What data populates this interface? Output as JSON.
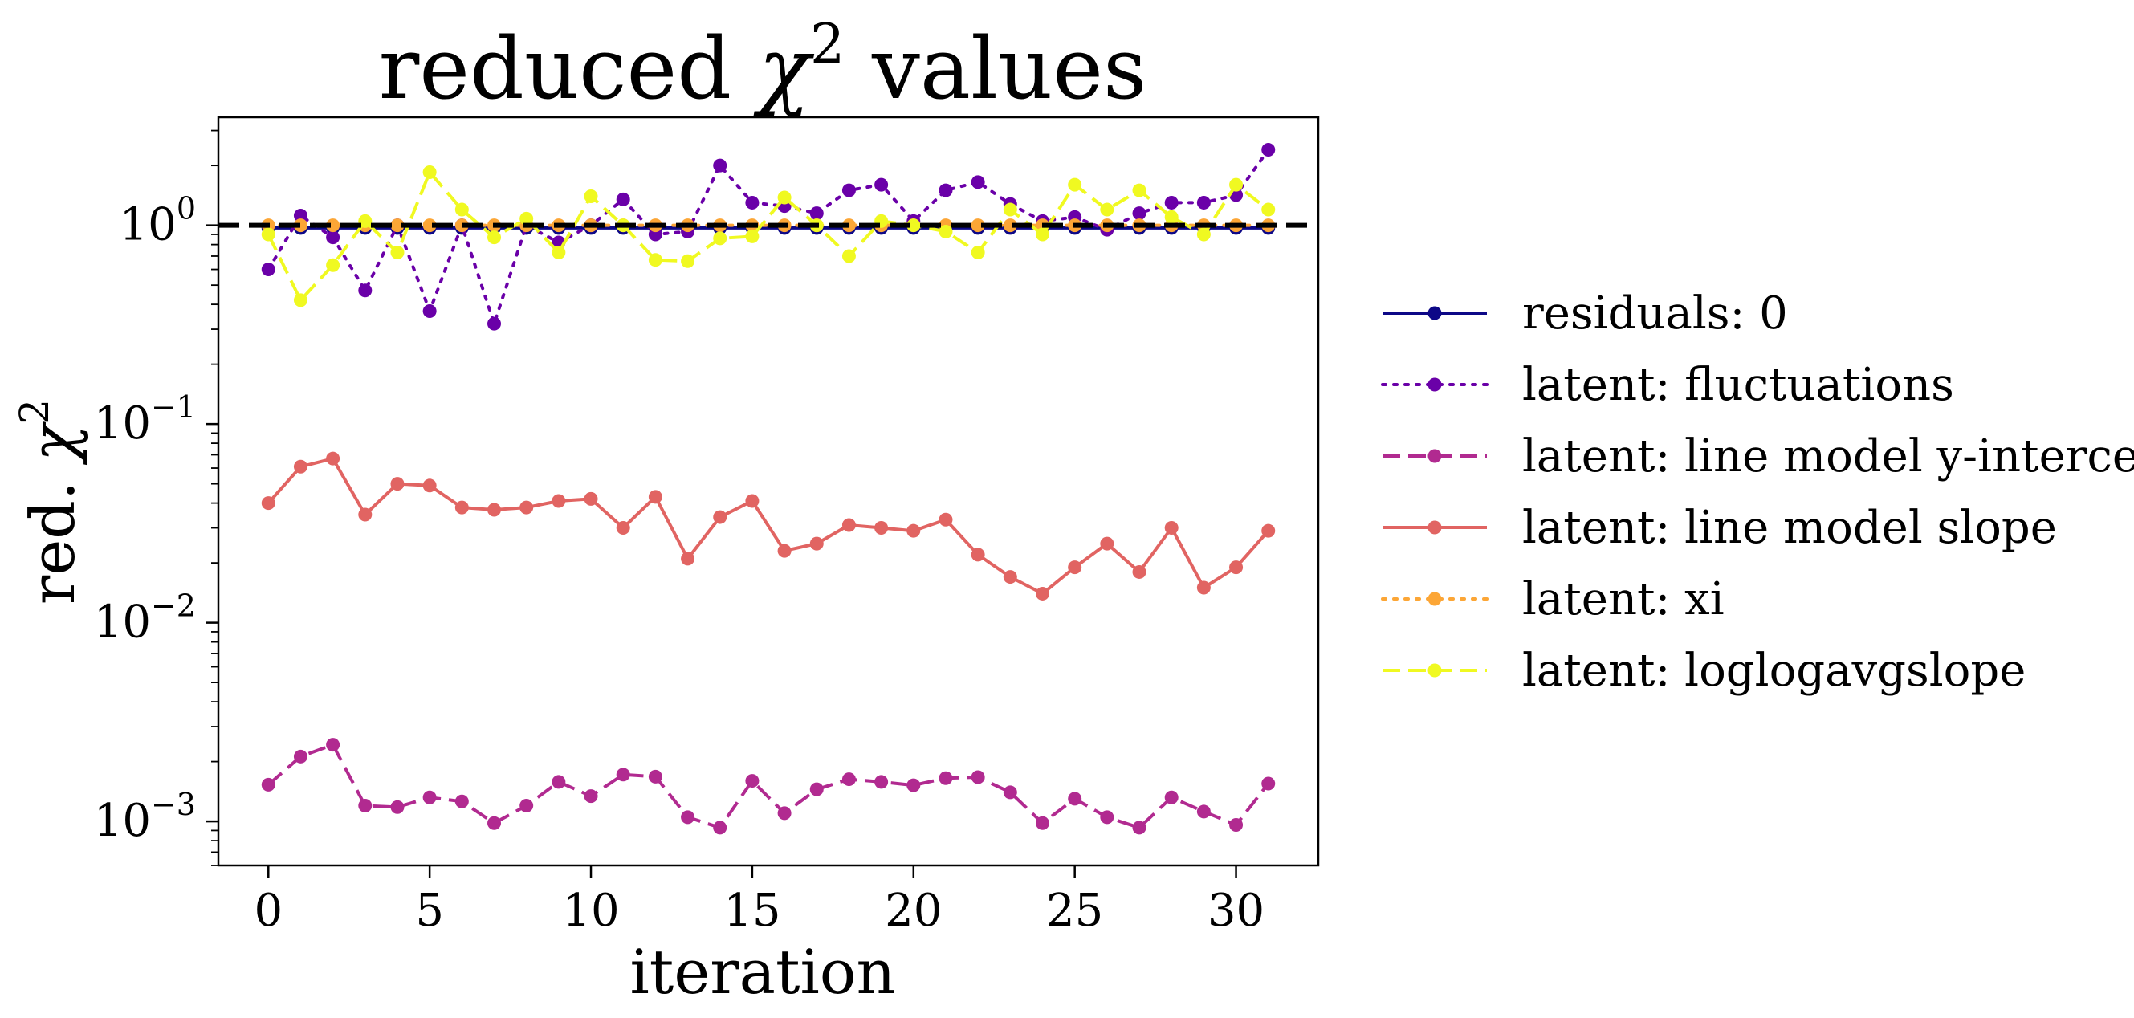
{
  "chart_data": {
    "type": "line",
    "title": "reduced χ² values",
    "title_main": "reduced ",
    "title_symbol": "χ",
    "title_sup": "2",
    "title_tail": " values",
    "xlabel": "iteration",
    "ylabel_main": "red. ",
    "ylabel_symbol": "χ",
    "ylabel_sup": "2",
    "ylabel": "red. χ²",
    "yscale": "log",
    "xlim": [
      -1.55,
      32.55
    ],
    "ylim": [
      0.0006,
      3.5
    ],
    "grid": false,
    "legend_position": "outside right",
    "x_ticks": [
      0,
      5,
      10,
      15,
      20,
      25,
      30
    ],
    "x_tick_labels": [
      "0",
      "5",
      "10",
      "15",
      "20",
      "25",
      "30"
    ],
    "y_ticks": [
      {
        "value": 1,
        "base": "10",
        "exp": "0"
      },
      {
        "value": 0.1,
        "base": "10",
        "exp": "−1"
      },
      {
        "value": 0.01,
        "base": "10",
        "exp": "−2"
      },
      {
        "value": 0.001,
        "base": "10",
        "exp": "−3"
      }
    ],
    "reference_line": {
      "y": 1,
      "style": "dashed",
      "color": "#000000"
    },
    "x": [
      0,
      1,
      2,
      3,
      4,
      5,
      6,
      7,
      8,
      9,
      10,
      11,
      12,
      13,
      14,
      15,
      16,
      17,
      18,
      19,
      20,
      21,
      22,
      23,
      24,
      25,
      26,
      27,
      28,
      29,
      30,
      31
    ],
    "series": [
      {
        "name": "residuals: 0",
        "color": "#0d0887",
        "dash": "solid",
        "values": [
          0.97,
          0.97,
          0.97,
          0.97,
          0.97,
          0.97,
          0.97,
          0.97,
          0.97,
          0.97,
          0.97,
          0.97,
          0.97,
          0.97,
          0.97,
          0.97,
          0.97,
          0.97,
          0.97,
          0.97,
          0.97,
          0.97,
          0.97,
          0.97,
          0.97,
          0.97,
          0.97,
          0.97,
          0.97,
          0.97,
          0.97,
          0.97
        ]
      },
      {
        "name": "latent: fluctuations",
        "color": "#6a00a8",
        "dash": "dotted",
        "values": [
          0.6,
          1.12,
          0.87,
          0.47,
          1.0,
          0.37,
          1.0,
          0.32,
          1.0,
          0.82,
          1.0,
          1.35,
          0.9,
          0.93,
          2.0,
          1.3,
          1.25,
          1.15,
          1.5,
          1.6,
          1.05,
          1.5,
          1.65,
          1.28,
          1.05,
          1.1,
          0.95,
          1.15,
          1.3,
          1.3,
          1.42,
          2.4
        ]
      },
      {
        "name": "latent: line model y-intercept",
        "color": "#b12a90",
        "dash": "dashed",
        "values": [
          0.00153,
          0.00212,
          0.00243,
          0.0012,
          0.00118,
          0.00132,
          0.00126,
          0.00098,
          0.0012,
          0.00158,
          0.00134,
          0.00172,
          0.00168,
          0.00105,
          0.00093,
          0.0016,
          0.0011,
          0.00145,
          0.00163,
          0.00158,
          0.00152,
          0.00165,
          0.00167,
          0.0014,
          0.00098,
          0.0013,
          0.00105,
          0.00093,
          0.00132,
          0.00112,
          0.00096,
          0.00155
        ]
      },
      {
        "name": "latent: line model slope",
        "color": "#e16462",
        "dash": "solid",
        "values": [
          0.04,
          0.061,
          0.067,
          0.035,
          0.05,
          0.049,
          0.038,
          0.037,
          0.038,
          0.041,
          0.042,
          0.03,
          0.043,
          0.021,
          0.034,
          0.041,
          0.023,
          0.025,
          0.031,
          0.03,
          0.029,
          0.033,
          0.022,
          0.017,
          0.014,
          0.019,
          0.025,
          0.018,
          0.03,
          0.015,
          0.019,
          0.029
        ]
      },
      {
        "name": "latent: xi",
        "color": "#fca636",
        "dash": "dotted",
        "values": [
          1.0,
          1.0,
          1.0,
          1.0,
          1.0,
          1.0,
          1.0,
          1.0,
          1.0,
          1.0,
          1.0,
          1.0,
          1.0,
          1.0,
          1.0,
          1.0,
          1.0,
          1.0,
          1.0,
          1.0,
          1.0,
          1.0,
          1.0,
          1.0,
          1.0,
          1.0,
          1.0,
          1.0,
          1.0,
          1.0,
          1.0,
          1.0
        ]
      },
      {
        "name": "latent: loglogavgslope",
        "color": "#f0f921",
        "dash": "dashed",
        "values": [
          0.9,
          0.42,
          0.63,
          1.05,
          0.73,
          1.85,
          1.2,
          0.87,
          1.08,
          0.73,
          1.4,
          1.0,
          0.67,
          0.66,
          0.86,
          0.88,
          1.38,
          1.0,
          0.7,
          1.05,
          1.0,
          0.93,
          0.73,
          1.2,
          0.9,
          1.6,
          1.2,
          1.5,
          1.1,
          0.9,
          1.6,
          1.2
        ]
      }
    ]
  }
}
